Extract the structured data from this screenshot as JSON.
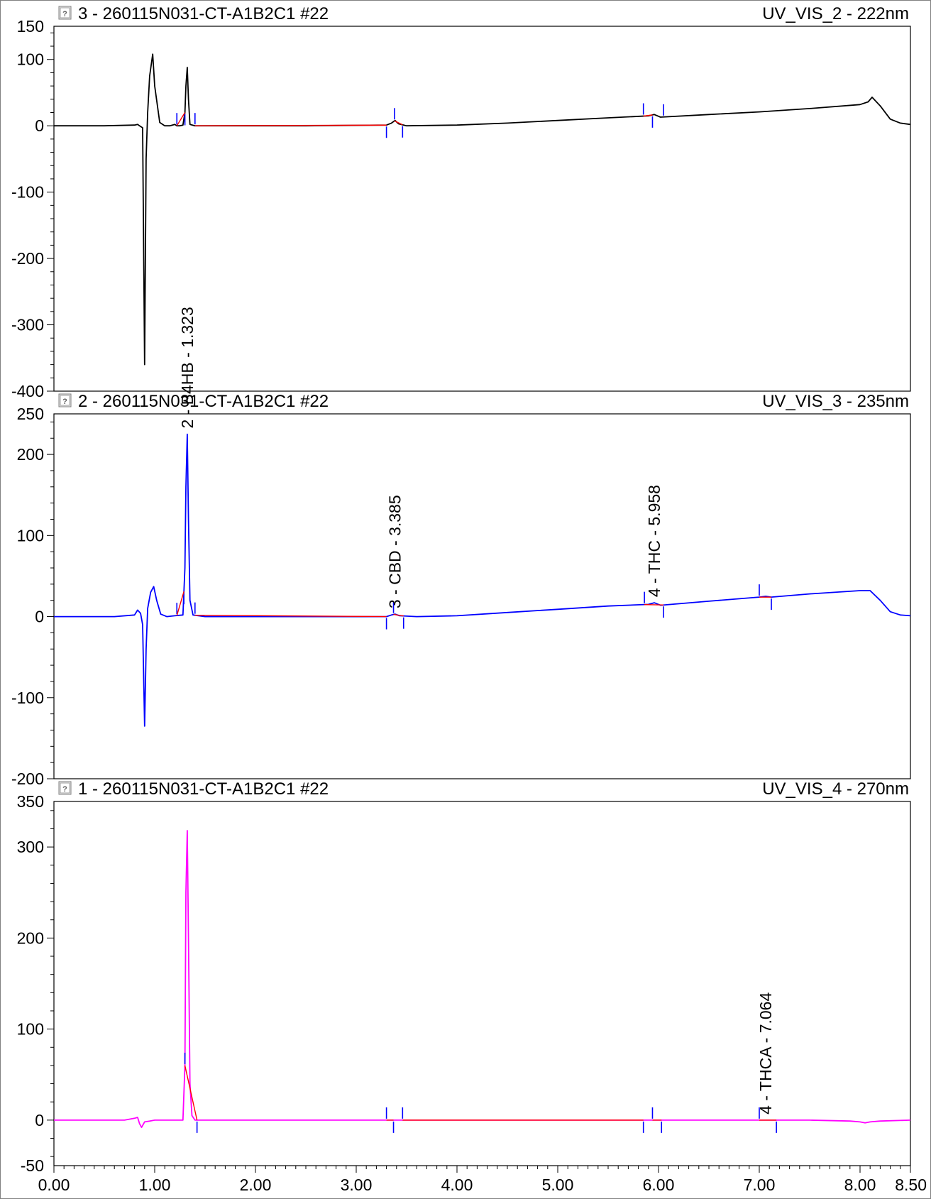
{
  "chart_data": [
    {
      "type": "line",
      "title": "3 - 260115N031-CT-A1B2C1 #22",
      "channel": "UV_VIS_2 - 222nm",
      "color": "#000000",
      "ylim": [
        -400,
        150
      ],
      "yticks": [
        150,
        100,
        0,
        -100,
        -200,
        -300,
        -400
      ],
      "ytick_labels": [
        "150",
        "100",
        "0",
        "-100",
        "-200",
        "-300",
        "-400"
      ],
      "xlim": [
        0,
        8.5
      ],
      "series": [
        {
          "x": [
            0.0,
            0.5,
            0.8,
            0.83,
            0.85,
            0.88,
            0.9,
            0.915,
            0.93,
            0.95,
            0.98,
            1.0,
            1.05,
            1.1,
            1.15,
            1.2,
            1.22,
            1.25,
            1.28,
            1.3,
            1.31,
            1.323,
            1.335,
            1.35,
            1.4,
            1.6,
            2.5,
            3.3,
            3.35,
            3.385,
            3.42,
            3.5,
            4.0,
            4.5,
            5.0,
            5.5,
            5.9,
            5.958,
            6.02,
            6.5,
            7.0,
            7.5,
            8.0,
            8.08,
            8.12,
            8.2,
            8.3,
            8.4,
            8.5
          ],
          "y": [
            0,
            0,
            1,
            2,
            0,
            -3,
            -360,
            -50,
            20,
            75,
            108,
            60,
            5,
            0,
            0,
            2,
            0,
            0,
            1,
            20,
            60,
            88,
            40,
            2,
            0,
            0,
            0,
            1,
            4,
            8,
            3,
            0,
            1,
            4,
            8,
            12,
            15,
            17,
            13,
            17,
            21,
            26,
            32,
            36,
            43,
            30,
            10,
            4,
            2
          ]
        }
      ],
      "peak_markers": [
        1.22,
        1.3,
        1.4,
        3.3,
        3.38,
        3.46,
        5.85,
        5.94,
        6.05
      ],
      "annotations": []
    },
    {
      "type": "line",
      "title": "2 - 260115N031-CT-A1B2C1 #22",
      "channel": "UV_VIS_3 - 235nm",
      "color": "#0000ff",
      "ylim": [
        -200,
        250
      ],
      "yticks": [
        250,
        200,
        100,
        0,
        -100,
        -200
      ],
      "ytick_labels": [
        "250",
        "200",
        "100",
        "0",
        "-100",
        "-200"
      ],
      "xlim": [
        0,
        8.5
      ],
      "series": [
        {
          "x": [
            0.0,
            0.6,
            0.8,
            0.83,
            0.86,
            0.88,
            0.9,
            0.915,
            0.93,
            0.96,
            0.99,
            1.02,
            1.06,
            1.12,
            1.2,
            1.28,
            1.3,
            1.31,
            1.323,
            1.335,
            1.35,
            1.38,
            1.5,
            2.5,
            3.3,
            3.35,
            3.385,
            3.43,
            3.6,
            4.0,
            4.5,
            5.0,
            5.5,
            5.9,
            5.958,
            6.02,
            6.5,
            7.0,
            7.064,
            7.12,
            7.5,
            8.0,
            8.1,
            8.2,
            8.3,
            8.4,
            8.5
          ],
          "y": [
            0,
            0,
            2,
            8,
            4,
            -10,
            -135,
            -40,
            10,
            30,
            37,
            20,
            3,
            0,
            1,
            2,
            60,
            160,
            225,
            120,
            20,
            2,
            0,
            0,
            0,
            2,
            3,
            1,
            0,
            1,
            5,
            9,
            13,
            15,
            17,
            14,
            19,
            24,
            25,
            24,
            28,
            32,
            32,
            20,
            6,
            2,
            1
          ]
        }
      ],
      "peak_markers": [
        1.22,
        1.29,
        1.4,
        3.3,
        3.37,
        3.47,
        5.86,
        6.05,
        7.0,
        7.12
      ],
      "annotations": [
        {
          "x": 1.323,
          "text": "2 - B4HB - 1.323"
        },
        {
          "x": 3.385,
          "text": "3 - CBD - 3.385"
        },
        {
          "x": 5.958,
          "text": "4 - THC - 5.958"
        }
      ]
    },
    {
      "type": "line",
      "title": "1 - 260115N031-CT-A1B2C1 #22",
      "channel": "UV_VIS_4 - 270nm",
      "color": "#ff00ff",
      "ylim": [
        -50,
        350
      ],
      "yticks": [
        350,
        300,
        200,
        100,
        0,
        -50
      ],
      "ytick_labels": [
        "350",
        "300",
        "200",
        "100",
        "0",
        "-50"
      ],
      "xlim": [
        0,
        8.5
      ],
      "series": [
        {
          "x": [
            0.0,
            0.7,
            0.8,
            0.83,
            0.85,
            0.87,
            0.9,
            0.95,
            1.0,
            1.28,
            1.3,
            1.31,
            1.323,
            1.335,
            1.35,
            1.37,
            1.4,
            1.6,
            3.0,
            5.0,
            7.0,
            7.5,
            7.9,
            8.0,
            8.05,
            8.1,
            8.2,
            8.5
          ],
          "y": [
            0,
            0,
            2,
            3,
            -4,
            -8,
            -2,
            -1,
            0,
            0,
            60,
            250,
            318,
            200,
            40,
            5,
            0,
            0,
            0,
            0,
            0,
            0,
            -1,
            -2,
            -3,
            -2,
            -1,
            0
          ]
        }
      ],
      "peak_markers": [
        1.3,
        1.42,
        3.3,
        3.37,
        3.46,
        5.85,
        5.94,
        6.03,
        7.0,
        7.17
      ],
      "annotations": [
        {
          "x": 7.064,
          "text": "4 - THCA - 7.064"
        }
      ]
    }
  ],
  "x_axis": {
    "ticks": [
      0,
      1,
      2,
      3,
      4,
      5,
      6,
      7,
      8,
      8.5
    ],
    "labels": [
      "0.00",
      "1.00",
      "2.00",
      "3.00",
      "4.00",
      "5.00",
      "6.00",
      "7.00",
      "8.00",
      "8.50"
    ]
  },
  "colors": {
    "marker": "#0000ff",
    "baseline": "#ff0000",
    "icon_gray": "#808080"
  },
  "icons": [
    "report-icon"
  ]
}
